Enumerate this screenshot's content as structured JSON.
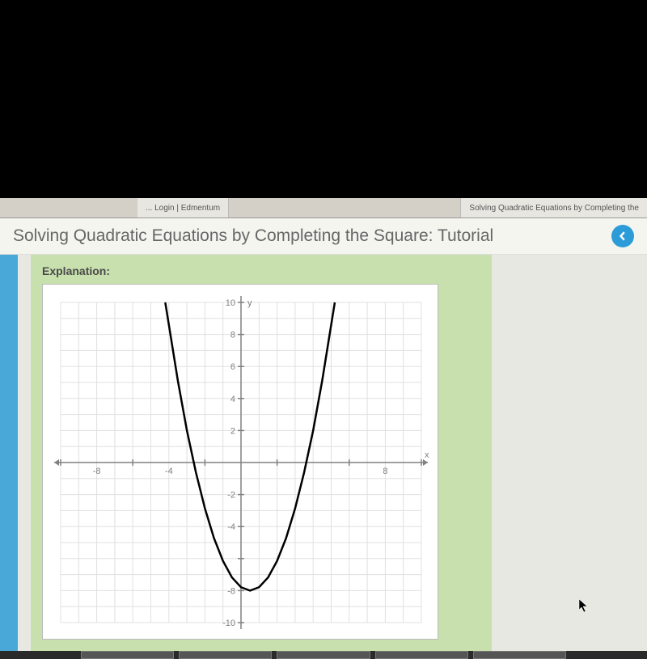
{
  "tabs": {
    "left": "... Login | Edmentum",
    "right": "Solving Quadratic Equations by Completing the"
  },
  "page": {
    "title": "Solving Quadratic Equations by Completing the Square: Tutorial",
    "explanation_label": "Explanation:"
  },
  "chart": {
    "type": "line",
    "xlim": [
      -10,
      10
    ],
    "ylim": [
      -10,
      10
    ],
    "xtick_step": 1,
    "ytick_step": 1,
    "xtick_labels": [
      -8,
      -4,
      8
    ],
    "ytick_labels": [
      10,
      8,
      6,
      4,
      2,
      -2,
      -4,
      -8,
      -10
    ],
    "x_axis_label": "x",
    "y_axis_label": "y",
    "background_color": "#ffffff",
    "grid_color": "#e0e0e0",
    "axis_color": "#808080",
    "curve_color": "#000000",
    "curve_width": 2.5,
    "label_fontsize": 11,
    "label_color": "#808080",
    "parabola": {
      "vertex_x": 0.5,
      "vertex_y": -8,
      "a": 0.82,
      "points": [
        [
          -4.2,
          10
        ],
        [
          -3.5,
          5.1
        ],
        [
          -3,
          2.0
        ],
        [
          -2.5,
          -0.62
        ],
        [
          -2,
          -2.87
        ],
        [
          -1.5,
          -4.72
        ],
        [
          -1,
          -6.15
        ],
        [
          -0.5,
          -7.18
        ],
        [
          0,
          -7.79
        ],
        [
          0.5,
          -8
        ],
        [
          1,
          -7.79
        ],
        [
          1.5,
          -7.18
        ],
        [
          2,
          -6.15
        ],
        [
          2.5,
          -4.72
        ],
        [
          3,
          -2.87
        ],
        [
          3.5,
          -0.62
        ],
        [
          4,
          2.0
        ],
        [
          4.5,
          5.1
        ],
        [
          5.2,
          10
        ]
      ]
    }
  }
}
